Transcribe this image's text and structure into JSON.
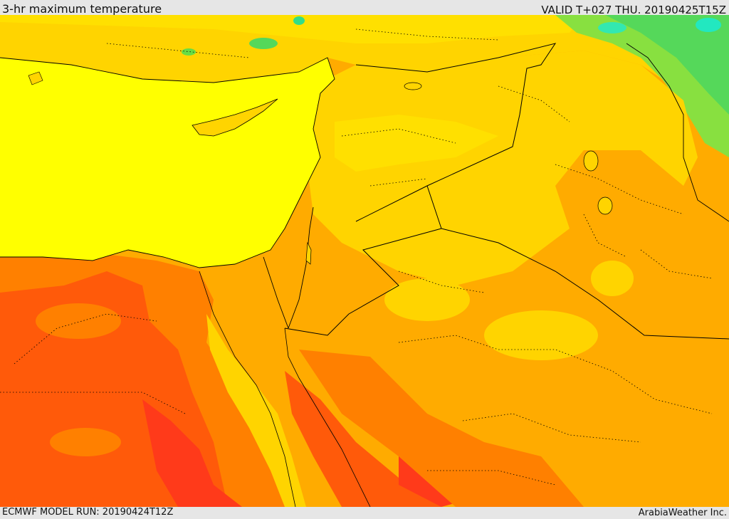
{
  "header": {
    "title": "3-hr maximum temperature",
    "valid_label": "VALID T+027 THU. 20190425T15Z"
  },
  "footer": {
    "model_run": "ECMWF MODEL RUN: 20190424T12Z",
    "credit": "ArabiaWeather Inc."
  },
  "colors": {
    "sea": "#ffff00",
    "hot_yellow": "#ffe000",
    "gold": "#ffd400",
    "orange": "#ffab00",
    "dark_orange": "#ff8000",
    "red_orange": "#ff5a0a",
    "red": "#ff3a1a",
    "green": "#66dd44",
    "cyan": "#22e8c0",
    "border_line": "#000000"
  }
}
